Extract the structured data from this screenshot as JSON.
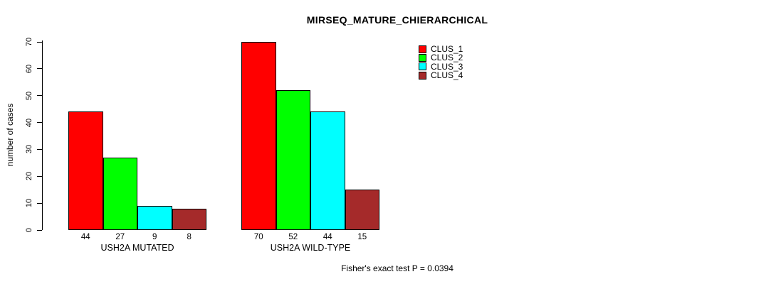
{
  "chart_data": {
    "type": "bar",
    "title": "MIRSEQ_MATURE_CHIERARCHICAL",
    "ylabel": "number of cases",
    "xlabel": "",
    "footer": "Fisher's exact test P = 0.0394",
    "ylim": [
      0,
      70
    ],
    "yticks": [
      0,
      10,
      20,
      30,
      40,
      50,
      60,
      70
    ],
    "grid": false,
    "bar_value_labels": true,
    "legend_position": "top-right",
    "categories": [
      "USH2A MUTATED",
      "USH2A WILD-TYPE"
    ],
    "series": [
      {
        "name": "CLUS_1",
        "color": "#FF0000",
        "values": [
          44,
          70
        ]
      },
      {
        "name": "CLUS_2",
        "color": "#00FF00",
        "values": [
          27,
          52
        ]
      },
      {
        "name": "CLUS_3",
        "color": "#00FFFF",
        "values": [
          9,
          44
        ]
      },
      {
        "name": "CLUS_4",
        "color": "#A52A2A",
        "values": [
          8,
          15
        ]
      }
    ],
    "colors": {
      "background": "#FFFFFF",
      "axis": "#000000",
      "text": "#000000",
      "bar_border": "#000000"
    }
  }
}
